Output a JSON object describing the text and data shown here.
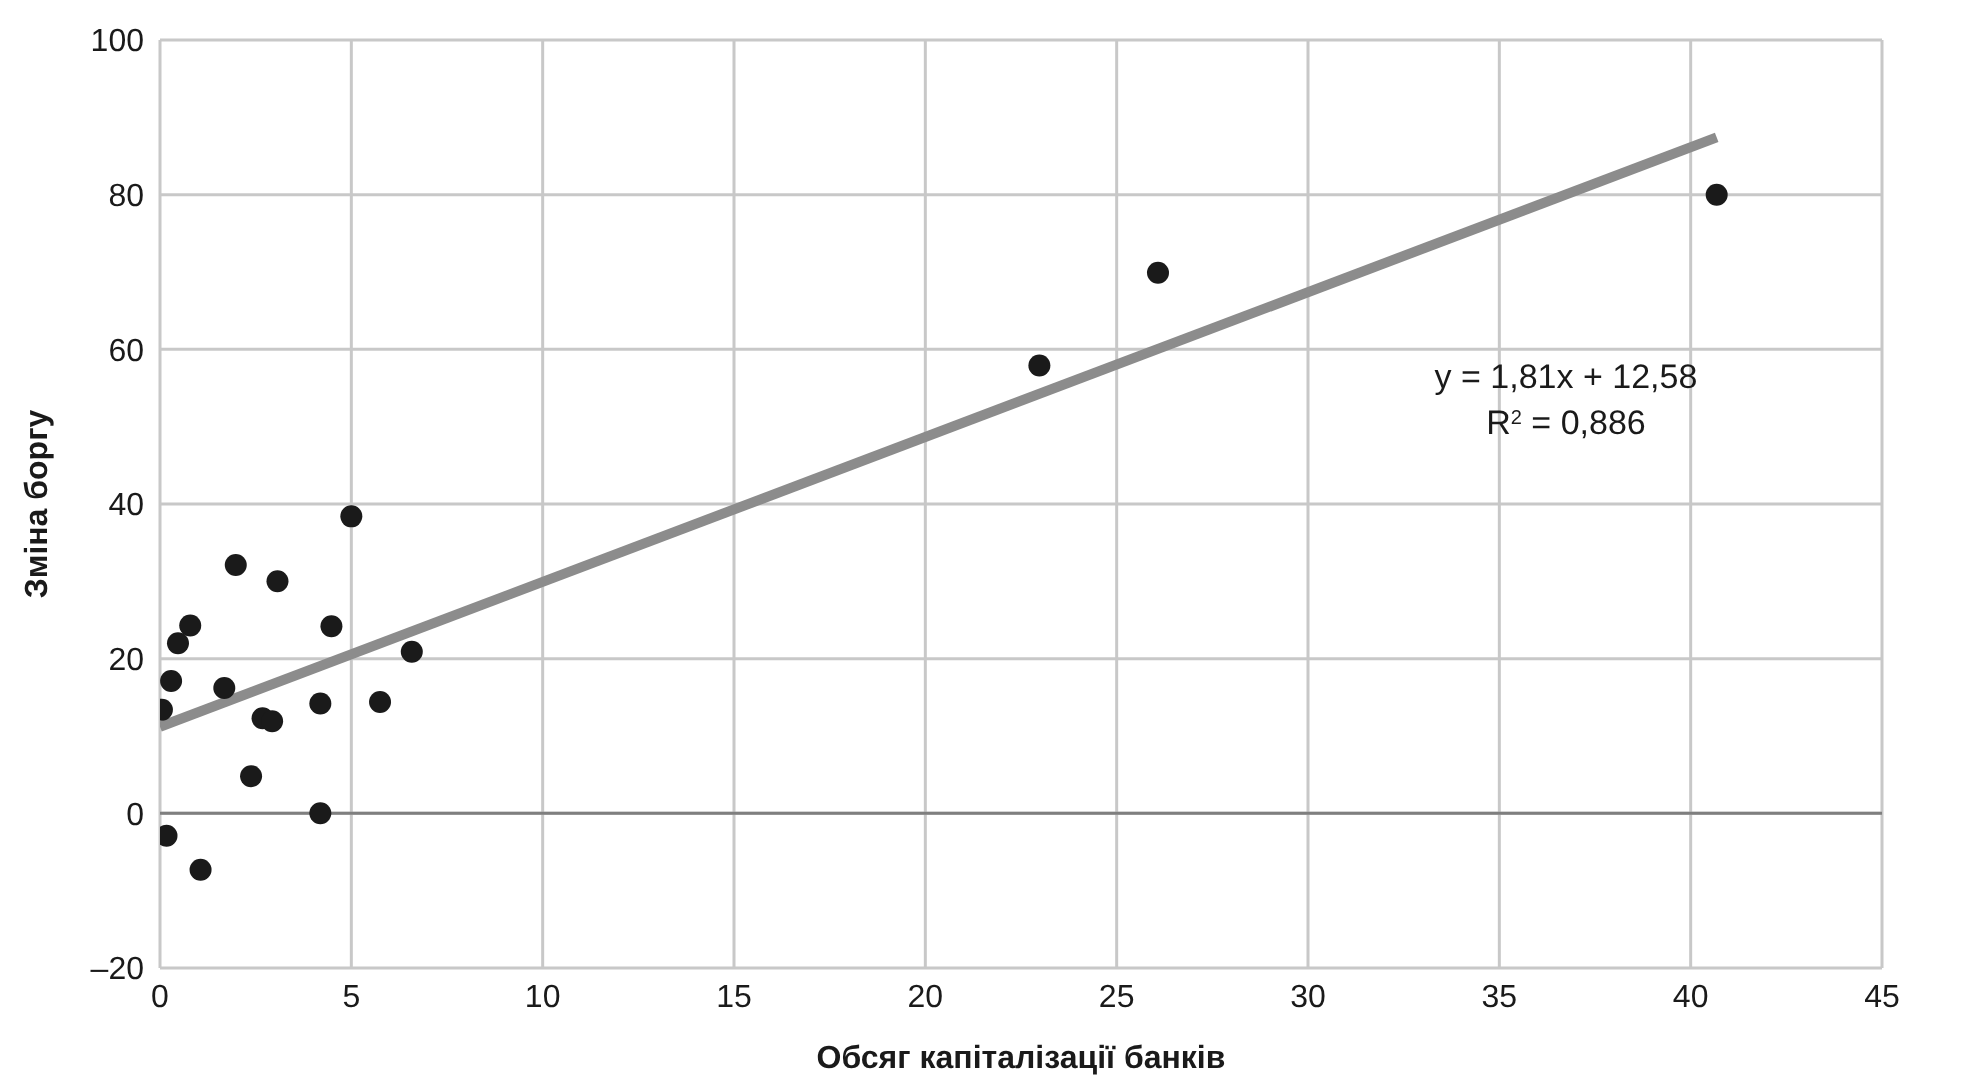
{
  "chart_data": {
    "type": "scatter",
    "xlabel": "Обсяг капіталізації банків",
    "ylabel": "Зміна боргу",
    "series": [
      {
        "color": "#1a1a1a",
        "marker": "circle",
        "x": [
          5.0,
          1.98,
          3.07,
          0.79,
          0.47,
          4.48,
          6.58,
          0.29,
          1.68,
          0.05,
          4.19,
          5.75,
          2.68,
          2.93,
          2.38,
          4.19,
          0.17,
          1.06,
          22.98,
          26.08,
          40.68
        ],
        "values": [
          38.4,
          32.1,
          30.0,
          24.3,
          22.0,
          24.2,
          20.9,
          17.1,
          16.2,
          13.4,
          14.2,
          14.4,
          12.3,
          11.9,
          4.8,
          0.0,
          -2.9,
          -7.3,
          57.9,
          69.9,
          80.0
        ]
      },
      {
        "type": "line",
        "color": "#8c8c8c",
        "marker": "none",
        "x": [
          0,
          40.68
        ],
        "values": [
          11.2,
          87.4
        ]
      }
    ],
    "xlim": [
      0,
      45
    ],
    "xticks": [
      0,
      5,
      10,
      15,
      20,
      25,
      30,
      35,
      40,
      45
    ],
    "ylim": [
      -20,
      100
    ],
    "yticks": [
      {
        "value": -20,
        "label": "–20"
      },
      0,
      20,
      40,
      60,
      80,
      100
    ],
    "grid": true,
    "ref_lines": [
      {
        "axis": "y",
        "value": 0,
        "color": "#7f7f7f"
      }
    ],
    "annotations": [
      "y = 1,81x + 12,58",
      "R$^{2}$ = 0,886"
    ]
  }
}
